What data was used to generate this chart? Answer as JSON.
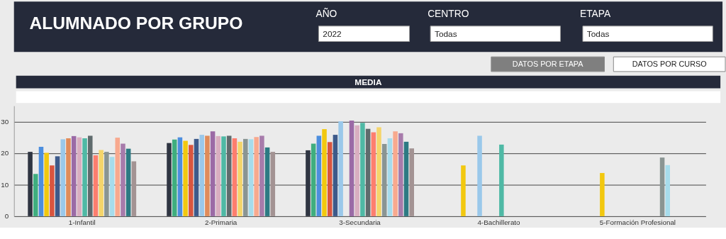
{
  "chart_data": {
    "type": "bar",
    "title": "ALUMNADO POR GRUPO",
    "subtitle": "MEDIA",
    "annotations": [
      "AÑO",
      "2022",
      "CENTRO",
      "Todas",
      "ETAPA",
      "Todas",
      "DATOS POR ETAPA",
      "DATOS POR CURSO"
    ],
    "categories": [
      "1-Infantil",
      "2-Primaria",
      "3-Secundaria",
      "4-Bachillerato",
      "5-Formación Profesional"
    ],
    "series": [
      {
        "color": "#2f3542",
        "values": [
          20.4,
          23.2,
          20.9,
          null,
          null
        ]
      },
      {
        "color": "#3fae7f",
        "values": [
          13.4,
          24.3,
          23.0,
          null,
          null
        ]
      },
      {
        "color": "#4c8ede",
        "values": [
          22.0,
          25.0,
          25.5,
          null,
          null
        ]
      },
      {
        "color": "#f2c80f",
        "values": [
          20.1,
          23.9,
          27.6,
          16.1,
          13.7
        ]
      },
      {
        "color": "#d9553f",
        "values": [
          16.1,
          22.6,
          23.5,
          null,
          null
        ]
      },
      {
        "color": "#3d5a8a",
        "values": [
          19.0,
          24.5,
          25.8,
          null,
          null
        ]
      },
      {
        "color": "#9ac8ea",
        "values": [
          24.4,
          25.8,
          30.1,
          25.5,
          null
        ]
      },
      {
        "color": "#e08c5a",
        "values": [
          24.7,
          25.5,
          null,
          null,
          null
        ]
      },
      {
        "color": "#9b6aa6",
        "values": [
          25.4,
          26.9,
          30.3,
          null,
          null
        ]
      },
      {
        "color": "#d9aec0",
        "values": [
          25.0,
          25.4,
          28.8,
          null,
          null
        ]
      },
      {
        "color": "#4fb9a5",
        "values": [
          24.7,
          25.3,
          29.6,
          22.7,
          null
        ]
      },
      {
        "color": "#5f6b6d",
        "values": [
          25.5,
          25.5,
          27.7,
          null,
          null
        ]
      },
      {
        "color": "#fd7e6e",
        "values": [
          19.3,
          24.7,
          26.6,
          null,
          null
        ]
      },
      {
        "color": "#f5d56a",
        "values": [
          21.0,
          23.6,
          28.2,
          null,
          null
        ]
      },
      {
        "color": "#8a9593",
        "values": [
          20.4,
          24.5,
          22.9,
          null,
          18.6
        ]
      },
      {
        "color": "#a6dcec",
        "values": [
          18.8,
          24.4,
          24.7,
          null,
          16.2
        ]
      },
      {
        "color": "#f8a98e",
        "values": [
          24.9,
          25.1,
          26.9,
          null,
          null
        ]
      },
      {
        "color": "#a77bab",
        "values": [
          23.0,
          25.5,
          26.3,
          null,
          null
        ]
      },
      {
        "color": "#2d7a83",
        "values": [
          21.4,
          21.8,
          23.6,
          null,
          null
        ]
      },
      {
        "color": "#a39393",
        "values": [
          17.4,
          20.4,
          21.5,
          null,
          null
        ]
      }
    ],
    "ylim": [
      0,
      35
    ],
    "yticks": [
      0,
      10,
      20,
      30
    ],
    "grid": "y",
    "legend": false
  }
}
